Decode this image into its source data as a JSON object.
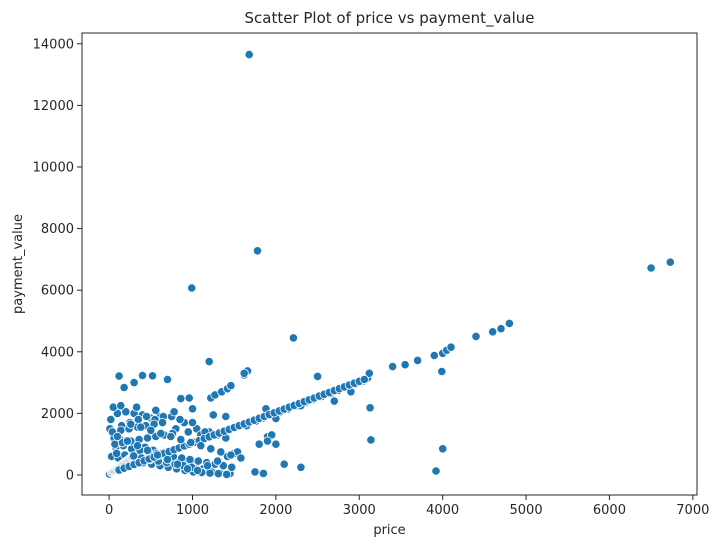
{
  "chart_data": {
    "type": "scatter",
    "title": "Scatter Plot of price vs payment_value",
    "xlabel": "price",
    "ylabel": "payment_value",
    "xlim": [
      -325,
      7050
    ],
    "ylim": [
      -650,
      14350
    ],
    "xticks": [
      0,
      1000,
      2000,
      3000,
      4000,
      5000,
      6000,
      7000
    ],
    "yticks": [
      0,
      2000,
      4000,
      6000,
      8000,
      10000,
      12000,
      14000
    ],
    "grid": false,
    "marker_color": "#1f77b4",
    "series": [
      {
        "x": [
          1680,
          1780,
          990,
          6500,
          6730,
          2210,
          1200,
          1660,
          1620,
          120,
          400,
          520,
          180,
          300,
          700,
          960,
          860,
          1220,
          1270,
          1350,
          1420,
          1460,
          1620,
          1680,
          1760,
          1850,
          1950,
          2050,
          2150,
          2250,
          2350,
          2450,
          2550,
          2650,
          2750,
          2850,
          2950,
          3050,
          3100,
          3400,
          3550,
          3700,
          3900,
          4000,
          4050,
          4100,
          4400,
          4600,
          4700,
          4800,
          3130,
          3140,
          2500,
          2300,
          2700,
          2900,
          3990,
          4000,
          3920,
          3120,
          2300,
          2100,
          1900,
          1850,
          1750,
          1800,
          2000,
          1950,
          1900,
          1880,
          2000,
          1650,
          1500,
          1450,
          1200,
          1050,
          1000,
          900,
          850,
          600,
          500,
          400,
          300,
          200,
          100,
          50,
          20,
          10,
          150,
          250,
          350,
          450,
          550,
          650,
          750,
          800,
          950,
          1100,
          1150,
          1300,
          1400,
          60,
          130,
          220,
          330,
          430,
          530,
          630,
          730,
          830,
          930,
          1030,
          1130,
          1230,
          1330,
          80,
          170,
          270,
          370,
          470,
          570,
          670,
          770,
          870,
          970,
          1070,
          1170,
          1270,
          1370,
          1470,
          30,
          110,
          210,
          310,
          410,
          510,
          610,
          710,
          810,
          910,
          1010,
          1110,
          1210,
          1310,
          1410,
          90,
          190,
          290,
          390,
          490,
          590,
          690,
          790,
          890,
          990,
          70,
          160,
          260,
          360,
          460,
          560,
          660,
          760,
          40,
          140,
          240,
          340,
          440,
          540,
          640,
          15,
          5,
          25,
          35,
          45,
          55,
          65,
          75,
          85,
          95,
          105,
          115,
          125,
          135,
          145,
          155,
          165,
          175,
          185,
          195,
          205,
          215,
          225,
          235,
          245,
          255,
          265,
          275,
          285,
          295,
          120,
          180,
          240,
          300,
          360,
          420,
          480,
          540,
          600,
          660,
          720,
          780,
          840,
          900,
          960,
          1020,
          1080,
          1140,
          1200,
          1260,
          1320,
          1380,
          1440,
          1500,
          1560,
          1620,
          1680,
          1740,
          1800,
          1860,
          1920,
          1980,
          2040,
          2100,
          2160,
          2220,
          2280,
          2340,
          2400,
          2460,
          2520,
          2580,
          2640,
          2700,
          2760,
          2820,
          2880,
          2940,
          3000,
          3060,
          100,
          220,
          340,
          460,
          580,
          700,
          820,
          940,
          1060,
          1180,
          1300,
          1420,
          1540,
          260,
          380,
          500,
          620,
          740,
          860,
          980,
          1100,
          1220,
          1340,
          1460,
          1580,
          140,
          330,
          560,
          780,
          1000,
          1250,
          1400
        ],
        "y": [
          13650,
          7280,
          6070,
          6720,
          6910,
          4450,
          3680,
          3380,
          3250,
          3210,
          3230,
          3220,
          2840,
          3000,
          3100,
          2500,
          2480,
          2500,
          2600,
          2700,
          2800,
          2900,
          3300,
          1700,
          1750,
          1850,
          1950,
          2050,
          2150,
          2250,
          2350,
          2450,
          2550,
          2650,
          2750,
          2850,
          2950,
          3050,
          3150,
          3520,
          3580,
          3720,
          3880,
          3950,
          4050,
          4150,
          4500,
          4650,
          4750,
          4920,
          2180,
          1140,
          3200,
          2250,
          2400,
          2700,
          3360,
          850,
          130,
          3300,
          250,
          350,
          1240,
          50,
          100,
          1000,
          1000,
          1300,
          1100,
          2150,
          1830,
          1600,
          700,
          50,
          1400,
          1500,
          1700,
          1700,
          1800,
          1900,
          1850,
          1950,
          2000,
          2050,
          2000,
          2200,
          1800,
          1500,
          1600,
          1700,
          1800,
          1900,
          1800,
          1900,
          1900,
          1500,
          1400,
          1300,
          1400,
          1300,
          1200,
          1200,
          1150,
          1100,
          1000,
          900,
          800,
          700,
          600,
          500,
          400,
          300,
          200,
          100,
          50,
          900,
          950,
          850,
          800,
          750,
          700,
          650,
          600,
          550,
          500,
          450,
          400,
          350,
          300,
          250,
          600,
          550,
          500,
          450,
          400,
          350,
          300,
          250,
          200,
          150,
          100,
          80,
          60,
          40,
          20,
          700,
          650,
          600,
          550,
          500,
          450,
          400,
          350,
          300,
          250,
          1000,
          1050,
          1100,
          1150,
          1200,
          1250,
          1300,
          1350,
          1400,
          1450,
          1500,
          1550,
          1600,
          1650,
          1700,
          50,
          30,
          80,
          100,
          120,
          140,
          160,
          180,
          200,
          220,
          240,
          260,
          280,
          300,
          320,
          340,
          360,
          380,
          400,
          420,
          440,
          460,
          480,
          500,
          520,
          540,
          560,
          580,
          600,
          620,
          160,
          220,
          280,
          340,
          400,
          460,
          520,
          580,
          640,
          700,
          760,
          820,
          880,
          940,
          1000,
          1060,
          1120,
          1180,
          1240,
          1300,
          1360,
          1420,
          1480,
          1540,
          1600,
          1660,
          1720,
          1780,
          1840,
          1900,
          1960,
          2020,
          2080,
          2140,
          2200,
          2260,
          2320,
          2380,
          2440,
          2500,
          2560,
          2620,
          2680,
          2740,
          2800,
          2860,
          2920,
          2980,
          3040,
          3100,
          1250,
          1100,
          950,
          800,
          650,
          500,
          350,
          200,
          150,
          300,
          450,
          600,
          750,
          1650,
          1550,
          1450,
          1350,
          1250,
          1150,
          1050,
          950,
          850,
          750,
          650,
          550,
          2250,
          2200,
          2100,
          2050,
          2150,
          1950,
          1900
        ]
      }
    ]
  }
}
